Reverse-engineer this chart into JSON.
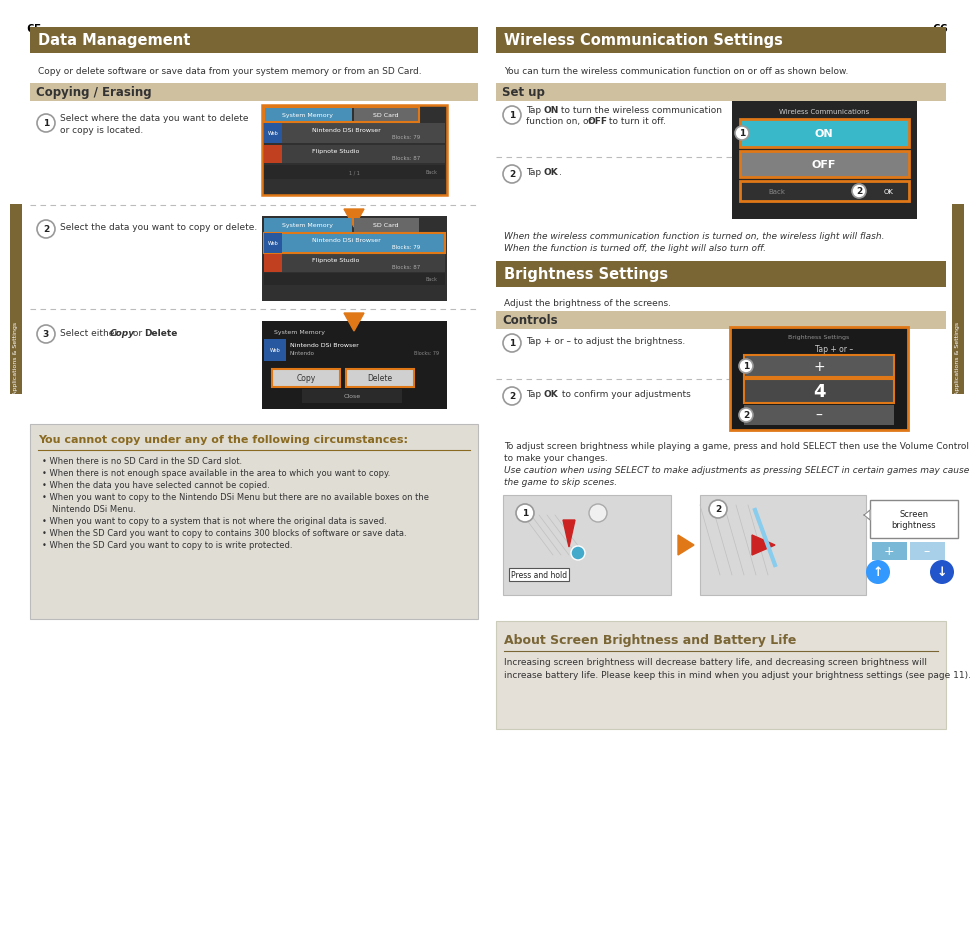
{
  "page_bg": "#ffffff",
  "left_page_num": "65",
  "right_page_num": "66",
  "left_title": "Data Management",
  "left_title_bg": "#7a6535",
  "left_title_color": "#ffffff",
  "left_subtitle": "Copy or delete software or save data from your system memory or from an SD Card.",
  "section1_title": "Copying / Erasing",
  "section1_bg": "#cfc0a0",
  "step1_text": "Select where the data you want to delete\nor copy is located.",
  "step2_text": "Select the data you want to copy or delete.",
  "step3_text_a": "Select either ",
  "step3_text_b": "Copy",
  "step3_text_c": " or ",
  "step3_text_d": "Delete",
  "step3_text_e": ".",
  "cannot_copy_title": "You cannot copy under any of the following circumstances:",
  "cannot_copy_bg": "#e0ddd5",
  "cannot_copy_title_color": "#8a6a20",
  "cannot_copy_line_color": "#8a6a20",
  "cannot_copy_items": [
    "When there is no SD Card in the SD Card slot.",
    "When there is not enough space available in the area to which you want to copy.",
    "When the data you have selected cannot be copied.",
    "When you want to copy to the Nintendo DSi Menu but there are no available boxes on the",
    "   Nintendo DSi Menu.",
    "When you want to copy to a system that is not where the original data is saved.",
    "When the SD Card you want to copy to contains 300 blocks of software or save data.",
    "When the SD Card you want to copy to is write protected."
  ],
  "right_title": "Wireless Communication Settings",
  "right_title_bg": "#7a6535",
  "right_title_color": "#ffffff",
  "right_subtitle": "You can turn the wireless communication function on or off as shown below.",
  "setup_title": "Set up",
  "setup_bg": "#cfc0a0",
  "setup_step1a": "Tap ",
  "setup_step1b": "ON",
  "setup_step1c": " to turn the wireless communication\nfunction on, or ",
  "setup_step1d": "OFF",
  "setup_step1e": " to turn it off.",
  "setup_step2a": "Tap ",
  "setup_step2b": "OK",
  "setup_step2c": ".",
  "wireless_italic_text1": "When the wireless communication function is turned on, the wireless light will flash.",
  "wireless_italic_text2": "When the function is turned off, the light will also turn off.",
  "brightness_title": "Brightness Settings",
  "brightness_title_bg": "#7a6535",
  "brightness_title_color": "#ffffff",
  "brightness_subtitle": "Adjust the brightness of the screens.",
  "controls_title": "Controls",
  "controls_bg": "#cfc0a0",
  "controls_step1a": "Tap + or – to adjust the brightness.",
  "controls_step2a": "Tap ",
  "controls_step2b": "OK",
  "controls_step2c": " to confirm your adjustments",
  "brightness_note1": "To adjust screen brightness while playing a game, press and hold SELECT then use the Volume Control",
  "brightness_note1b": "to make your changes.",
  "brightness_note2_italic": "Use caution when using SELECT to make adjustments as pressing SELECT in certain games may cause",
  "brightness_note2b_italic": "the game to skip scenes.",
  "about_title": "About Screen Brightness and Battery Life",
  "about_bg": "#e4e0d8",
  "about_title_color": "#7a6535",
  "about_text1": "Increasing screen brightness will decrease battery life, and decreasing screen brightness will",
  "about_text2": "increase battery life. Please keep this in mind when you adjust your brightness settings (see page 11).",
  "sidebar_color": "#7a6535",
  "sidebar_text": "Applications & Settings",
  "orange_color": "#e07818",
  "cyan_color": "#38b8c8",
  "dsi_screen_bg": "#303030",
  "dsi_tab_active": "#4890b8",
  "dsi_tab_inactive": "#686868",
  "dsi_item_bg": "#484848",
  "dsi_item_selected": "#4890b8",
  "web_icon_bg": "#2858a0",
  "flipnote_icon_bg": "#c04020"
}
